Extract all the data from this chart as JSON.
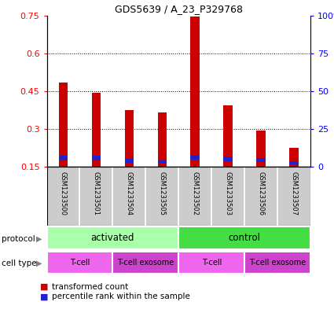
{
  "title": "GDS5639 / A_23_P329768",
  "samples": [
    "GSM1233500",
    "GSM1233501",
    "GSM1233504",
    "GSM1233505",
    "GSM1233502",
    "GSM1233503",
    "GSM1233506",
    "GSM1233507"
  ],
  "transformed_counts": [
    0.485,
    0.445,
    0.375,
    0.365,
    0.745,
    0.395,
    0.295,
    0.225
  ],
  "percentile_ranks_abs": [
    0.175,
    0.175,
    0.165,
    0.163,
    0.178,
    0.172,
    0.168,
    0.16
  ],
  "percentile_rank_heights": [
    0.018,
    0.018,
    0.016,
    0.014,
    0.02,
    0.018,
    0.016,
    0.012
  ],
  "bar_bottom": 0.15,
  "ylim": [
    0.15,
    0.75
  ],
  "yticks": [
    0.15,
    0.3,
    0.45,
    0.6,
    0.75
  ],
  "ytick_labels": [
    "0.15",
    "0.3",
    "0.45",
    "0.6",
    "0.75"
  ],
  "right_yticks": [
    0.15,
    0.3,
    0.45,
    0.6,
    0.75
  ],
  "right_ytick_labels": [
    "0",
    "25",
    "50",
    "75",
    "100%"
  ],
  "bar_color_red": "#cc0000",
  "bar_color_blue": "#2222cc",
  "protocol_activated_color": "#aaffaa",
  "protocol_control_color": "#44dd44",
  "cell_tcell_color": "#ee66ee",
  "cell_exosome_color": "#cc44cc",
  "sample_bg_color": "#cccccc",
  "sample_divider_color": "#aaaaaa",
  "protocols": [
    {
      "label": "activated",
      "start": 0,
      "end": 4
    },
    {
      "label": "control",
      "start": 4,
      "end": 8
    }
  ],
  "cell_types": [
    {
      "label": "T-cell",
      "start": 0,
      "end": 2,
      "color": "#ee66ee"
    },
    {
      "label": "T-cell exosome",
      "start": 2,
      "end": 4,
      "color": "#cc44cc"
    },
    {
      "label": "T-cell",
      "start": 4,
      "end": 6,
      "color": "#ee66ee"
    },
    {
      "label": "T-cell exosome",
      "start": 6,
      "end": 8,
      "color": "#cc44cc"
    }
  ],
  "legend_red_label": "transformed count",
  "legend_blue_label": "percentile rank within the sample",
  "bar_width": 0.28
}
